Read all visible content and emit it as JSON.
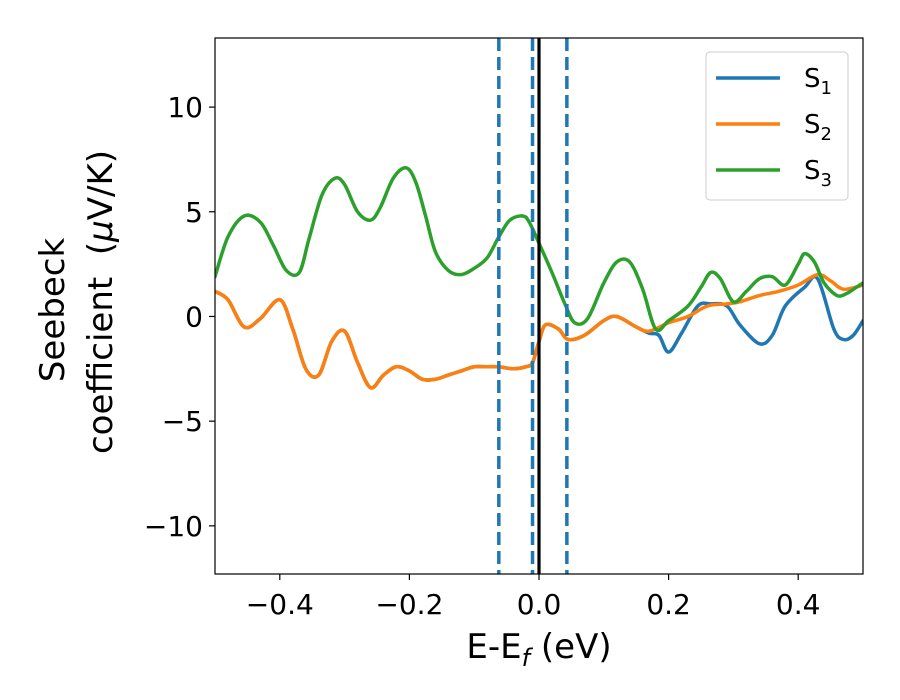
{
  "chart_data": {
    "type": "line",
    "xlabel": {
      "main": "E-E",
      "sub": "f",
      "unit": " (eV)"
    },
    "ylabel": {
      "line1": "Seebeck",
      "line2_pre": "coefficient  (",
      "mu": "μ",
      "line2_post": "V/K)"
    },
    "xlim": [
      -0.5,
      0.5
    ],
    "ylim": [
      -12.3,
      13.3
    ],
    "xticks": [
      -0.4,
      -0.2,
      0.0,
      0.2,
      0.4
    ],
    "xtick_labels": [
      "−0.4",
      "−0.2",
      "0.0",
      "0.2",
      "0.4"
    ],
    "yticks": [
      -10,
      -5,
      0,
      5,
      10
    ],
    "ytick_labels": [
      "−10",
      "−5",
      "0",
      "5",
      "10"
    ],
    "grid": false,
    "legend_position": "top-right",
    "vlines": [
      {
        "x": 0.0,
        "style": "solid",
        "color": "#000000"
      },
      {
        "x": -0.062,
        "style": "dashed",
        "color": "#1f77b4"
      },
      {
        "x": -0.01,
        "style": "dashed",
        "color": "#1f77b4"
      },
      {
        "x": 0.043,
        "style": "dashed",
        "color": "#1f77b4"
      }
    ],
    "series": [
      {
        "name": "S",
        "sub": "1",
        "color": "#1f77b4",
        "x": [
          -0.5,
          -0.48,
          -0.455,
          -0.43,
          -0.4,
          -0.38,
          -0.36,
          -0.34,
          -0.32,
          -0.3,
          -0.28,
          -0.26,
          -0.24,
          -0.22,
          -0.2,
          -0.18,
          -0.16,
          -0.14,
          -0.12,
          -0.1,
          -0.08,
          -0.062,
          -0.04,
          -0.02,
          -0.01,
          0.0,
          0.01,
          0.03,
          0.045,
          0.07,
          0.1,
          0.12,
          0.15,
          0.17,
          0.185,
          0.2,
          0.22,
          0.245,
          0.265,
          0.29,
          0.31,
          0.34,
          0.36,
          0.38,
          0.41,
          0.43,
          0.455,
          0.47,
          0.485,
          0.5
        ],
        "y": [
          1.2,
          0.8,
          -0.5,
          -0.1,
          0.8,
          -0.6,
          -2.5,
          -2.8,
          -1.2,
          -0.7,
          -2.2,
          -3.4,
          -2.8,
          -2.4,
          -2.6,
          -3.0,
          -3.0,
          -2.8,
          -2.6,
          -2.4,
          -2.4,
          -2.4,
          -2.5,
          -2.4,
          -2.2,
          -1.2,
          -0.4,
          -0.6,
          -1.1,
          -0.9,
          -0.2,
          0.0,
          -0.5,
          -0.8,
          -0.9,
          -1.7,
          -0.8,
          0.5,
          0.6,
          0.5,
          -0.4,
          -1.3,
          -0.9,
          0.5,
          1.4,
          1.8,
          -0.6,
          -1.1,
          -0.9,
          -0.2
        ]
      },
      {
        "name": "S",
        "sub": "2",
        "color": "#ff7f0e",
        "x": [
          -0.5,
          -0.48,
          -0.455,
          -0.43,
          -0.4,
          -0.38,
          -0.36,
          -0.34,
          -0.32,
          -0.3,
          -0.28,
          -0.26,
          -0.24,
          -0.22,
          -0.2,
          -0.18,
          -0.16,
          -0.14,
          -0.12,
          -0.1,
          -0.08,
          -0.062,
          -0.04,
          -0.02,
          -0.01,
          0.0,
          0.01,
          0.03,
          0.045,
          0.07,
          0.1,
          0.12,
          0.15,
          0.17,
          0.2,
          0.23,
          0.26,
          0.29,
          0.31,
          0.34,
          0.37,
          0.4,
          0.43,
          0.45,
          0.47,
          0.5
        ],
        "y": [
          1.2,
          0.8,
          -0.5,
          -0.1,
          0.8,
          -0.6,
          -2.5,
          -2.8,
          -1.2,
          -0.7,
          -2.2,
          -3.4,
          -2.8,
          -2.4,
          -2.6,
          -3.0,
          -3.0,
          -2.8,
          -2.6,
          -2.4,
          -2.4,
          -2.4,
          -2.5,
          -2.4,
          -2.2,
          -1.2,
          -0.4,
          -0.6,
          -1.1,
          -0.9,
          -0.2,
          0.0,
          -0.5,
          -0.7,
          -0.3,
          0.0,
          0.5,
          0.6,
          0.7,
          1.0,
          1.2,
          1.5,
          2.0,
          1.7,
          1.3,
          1.5
        ]
      },
      {
        "name": "S",
        "sub": "3",
        "color": "#2ca02c",
        "x": [
          -0.5,
          -0.48,
          -0.455,
          -0.43,
          -0.41,
          -0.39,
          -0.37,
          -0.355,
          -0.335,
          -0.315,
          -0.3,
          -0.28,
          -0.26,
          -0.245,
          -0.225,
          -0.205,
          -0.19,
          -0.175,
          -0.16,
          -0.14,
          -0.12,
          -0.1,
          -0.08,
          -0.062,
          -0.045,
          -0.025,
          -0.015,
          0.0,
          0.02,
          0.04,
          0.055,
          0.075,
          0.1,
          0.12,
          0.14,
          0.16,
          0.18,
          0.2,
          0.23,
          0.25,
          0.265,
          0.28,
          0.3,
          0.32,
          0.34,
          0.36,
          0.38,
          0.4,
          0.41,
          0.425,
          0.44,
          0.46,
          0.475,
          0.49,
          0.5
        ],
        "y": [
          1.9,
          3.8,
          4.8,
          4.5,
          3.4,
          2.2,
          2.1,
          3.7,
          5.8,
          6.6,
          6.3,
          5.0,
          4.6,
          5.2,
          6.6,
          7.1,
          6.4,
          4.8,
          3.1,
          2.2,
          2.0,
          2.3,
          2.8,
          3.8,
          4.6,
          4.8,
          4.5,
          3.5,
          2.1,
          0.6,
          -0.3,
          -0.1,
          1.6,
          2.6,
          2.6,
          1.3,
          -0.6,
          -0.2,
          0.5,
          1.4,
          2.1,
          1.8,
          0.7,
          1.2,
          1.8,
          1.9,
          1.5,
          2.5,
          3.0,
          2.6,
          1.6,
          1.0,
          1.1,
          1.4,
          1.6
        ]
      }
    ]
  }
}
